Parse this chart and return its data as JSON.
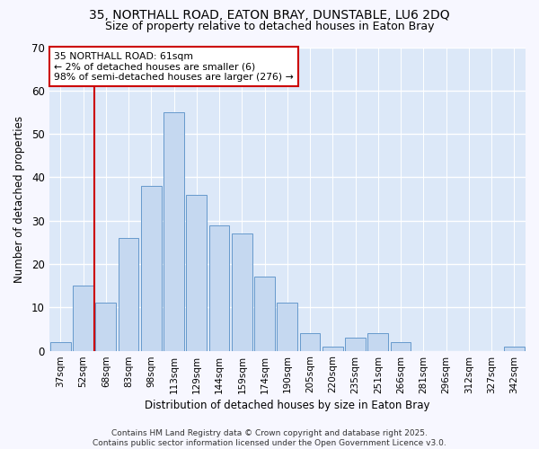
{
  "title_line1": "35, NORTHALL ROAD, EATON BRAY, DUNSTABLE, LU6 2DQ",
  "title_line2": "Size of property relative to detached houses in Eaton Bray",
  "xlabel": "Distribution of detached houses by size in Eaton Bray",
  "ylabel": "Number of detached properties",
  "categories": [
    "37sqm",
    "52sqm",
    "68sqm",
    "83sqm",
    "98sqm",
    "113sqm",
    "129sqm",
    "144sqm",
    "159sqm",
    "174sqm",
    "190sqm",
    "205sqm",
    "220sqm",
    "235sqm",
    "251sqm",
    "266sqm",
    "281sqm",
    "296sqm",
    "312sqm",
    "327sqm",
    "342sqm"
  ],
  "values": [
    2,
    15,
    11,
    26,
    38,
    55,
    36,
    29,
    27,
    17,
    11,
    4,
    1,
    3,
    4,
    2,
    0,
    0,
    0,
    0,
    1
  ],
  "bar_color": "#c5d8f0",
  "bar_edge_color": "#6699cc",
  "highlight_color": "#cc0000",
  "red_line_x": 1.5,
  "annotation_text": "35 NORTHALL ROAD: 61sqm\n← 2% of detached houses are smaller (6)\n98% of semi-detached houses are larger (276) →",
  "annotation_box_color": "#ffffff",
  "annotation_box_edge": "#cc0000",
  "ylim": [
    0,
    70
  ],
  "yticks": [
    0,
    10,
    20,
    30,
    40,
    50,
    60,
    70
  ],
  "footer_line1": "Contains HM Land Registry data © Crown copyright and database right 2025.",
  "footer_line2": "Contains public sector information licensed under the Open Government Licence v3.0.",
  "bg_color": "#f7f7ff",
  "plot_bg_color": "#dce8f8"
}
